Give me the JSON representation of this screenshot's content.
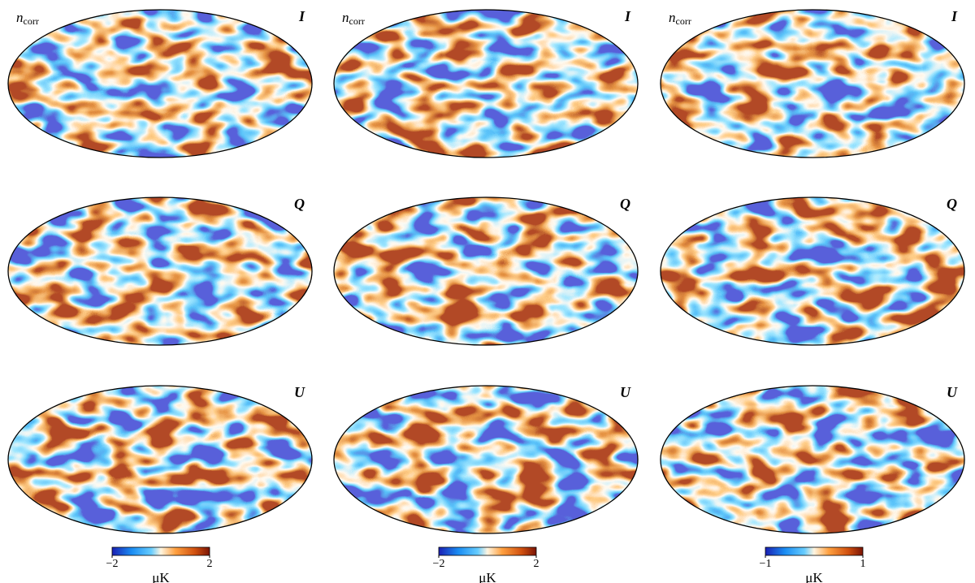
{
  "panels": [
    {
      "label_left": {
        "main": "n",
        "sub": "corr"
      },
      "label_right": "I"
    },
    {
      "label_left": {
        "main": "n",
        "sub": "corr"
      },
      "label_right": "I"
    },
    {
      "label_left": {
        "main": "n",
        "sub": "corr"
      },
      "label_right": "I"
    },
    {
      "label_right": "Q"
    },
    {
      "label_right": "Q"
    },
    {
      "label_right": "Q"
    },
    {
      "label_right": "U"
    },
    {
      "label_right": "U"
    },
    {
      "label_right": "U"
    }
  ],
  "colorbars": [
    {
      "ticks": [
        {
          "value": -2,
          "label": "−2"
        },
        2
      ],
      "unit": "μK"
    },
    {
      "ticks": [
        {
          "value": -2,
          "label": "−2"
        },
        2
      ],
      "unit": "μK"
    },
    {
      "ticks": [
        {
          "value": -1,
          "label": "−1"
        },
        1
      ],
      "unit": "μK"
    }
  ]
}
